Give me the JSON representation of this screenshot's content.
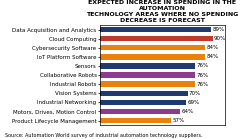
{
  "chart_data": {
    "type": "bar",
    "orientation": "horizontal",
    "title": "EXPECTED INCREASE IN SPENDING IN THE AUTOMATION\nTECHNOLOGY AREAS WHERE NO SPENDING DECREASE IS FORECAST",
    "categories": [
      "Data Acquisition and Analytics",
      "Cloud Computing",
      "Cybersecurity Software",
      "IoT Platform Software",
      "Sensors",
      "Collaborative Robots",
      "Industrial Robots",
      "Vision Systems",
      "Industrial Networking",
      "Motors, Drives, Motion Control",
      "Product Lifecycle Management"
    ],
    "values": [
      89,
      90,
      84,
      84,
      76,
      76,
      76,
      70,
      69,
      64,
      57
    ],
    "value_labels": [
      "89%",
      "90%",
      "84%",
      "84%",
      "76%",
      "76%",
      "76%",
      "70%",
      "69%",
      "64%",
      "57%"
    ],
    "colors": [
      "#1e3a6e",
      "#c0392b",
      "#e8820a",
      "#e8820a",
      "#1e3a6e",
      "#8e3a8e",
      "#e8820a",
      "#1e3a6e",
      "#1e3a6e",
      "#8e3a8e",
      "#e8820a"
    ],
    "xlim": [
      0,
      100
    ],
    "data_labels": true,
    "tick_labels": "y",
    "grid": false,
    "annotations": [
      "Source: Automation World survey of industrial automation technology suppliers."
    ]
  }
}
